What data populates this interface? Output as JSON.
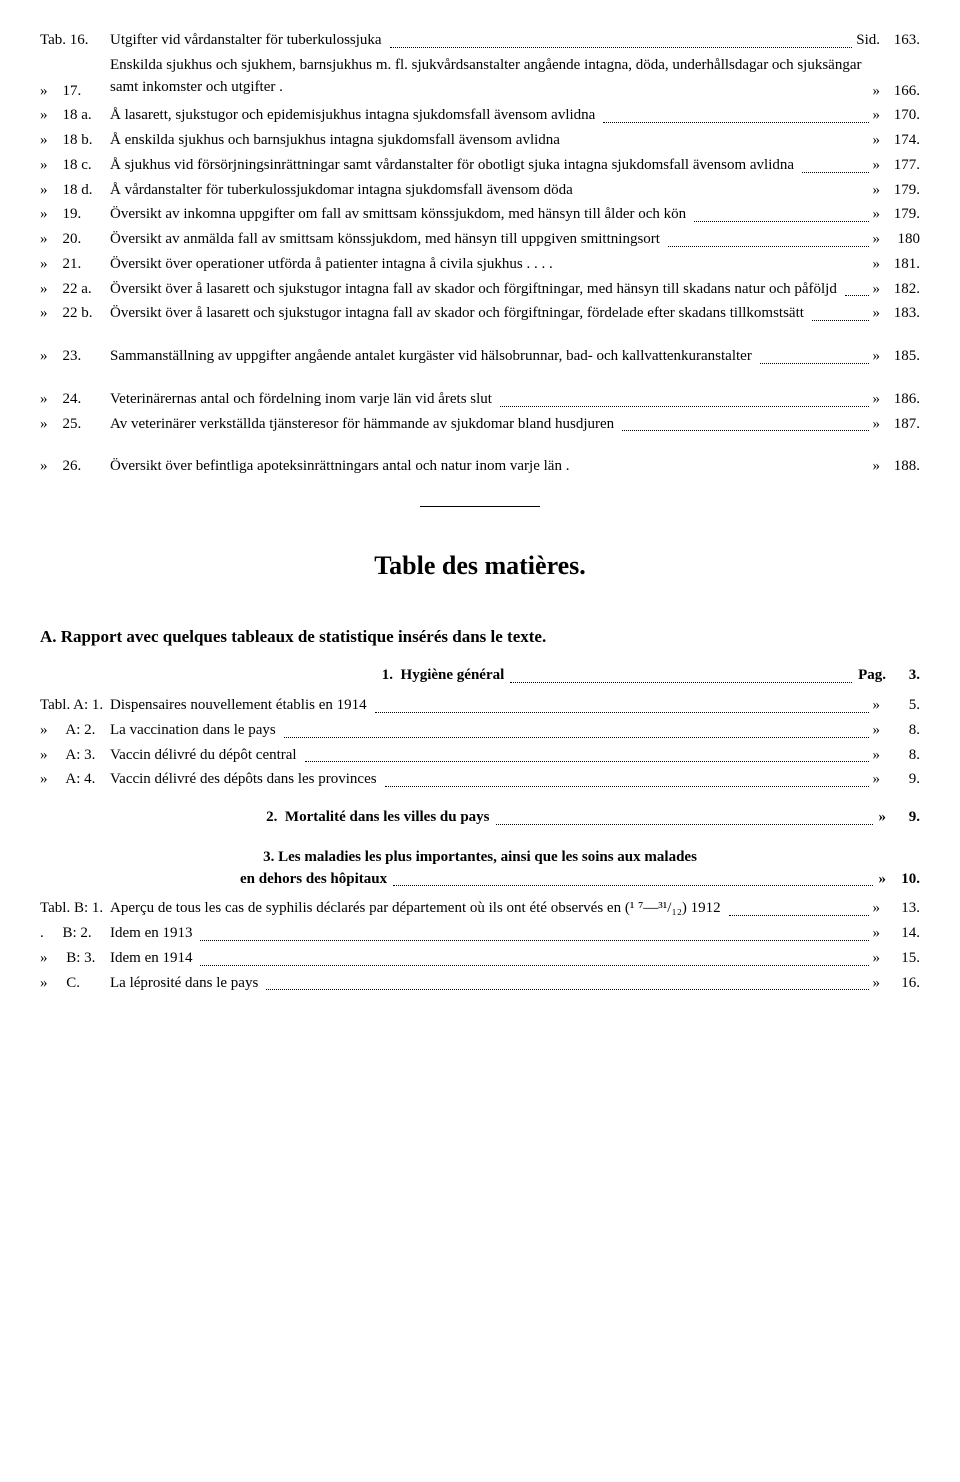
{
  "swedish_entries": [
    {
      "num": "Tab. 16.",
      "desc": "Utgifter vid vårdanstalter för tuberkulossjuka",
      "plabel": "Sid.",
      "page": "163."
    },
    {
      "num": "»    17.",
      "desc": "Enskilda sjukhus och sjukhem, barnsjukhus m. fl. sjukvårdsanstalter angående intagna, döda, underhållsdagar och sjuksängar samt inkomster och utgifter .",
      "plabel": "»",
      "page": "166.",
      "nodots": true,
      "multiline": true
    },
    {
      "num": "»    18 a.",
      "desc": "Å lasarett, sjukstugor och epidemisjukhus intagna sjukdomsfall ävensom avlidna",
      "plabel": "»",
      "page": "170.",
      "multiline": true
    },
    {
      "num": "»    18 b.",
      "desc": "Å enskilda sjukhus och barnsjukhus intagna sjukdomsfall ävensom avlidna",
      "plabel": "»",
      "page": "174.",
      "nodots": true
    },
    {
      "num": "»    18 c.",
      "desc": "Å sjukhus vid försörjningsinrättningar samt vårdanstalter för obotligt sjuka intagna sjukdomsfall ävensom avlidna",
      "plabel": "»",
      "page": "177.",
      "multiline": true
    },
    {
      "num": "»    18 d.",
      "desc": "Å vårdanstalter för tuberkulossjukdomar intagna sjukdomsfall ävensom döda",
      "plabel": "»",
      "page": "179.",
      "nodots": true
    },
    {
      "num": "»    19.",
      "desc": "Översikt av inkomna uppgifter om fall av smittsam könssjukdom, med hänsyn till ålder och kön",
      "plabel": "»",
      "page": "179.",
      "multiline": true
    },
    {
      "num": "»    20.",
      "desc": "Översikt av anmälda fall av smittsam könssjukdom, med hänsyn till uppgiven smittningsort",
      "plabel": "»",
      "page": "180",
      "multiline": true
    },
    {
      "num": "»    21.",
      "desc": "Översikt över operationer utförda å patienter intagna å civila sjukhus . . . .",
      "plabel": "»",
      "page": "181.",
      "nodots": true
    },
    {
      "num": "»    22 a.",
      "desc": "Översikt över å lasarett och sjukstugor intagna fall av skador och förgiftningar, med hänsyn till skadans natur och påföljd",
      "plabel": "»",
      "page": "182.",
      "multiline": true
    },
    {
      "num": "»    22 b.",
      "desc": "Översikt över å lasarett och sjukstugor intagna fall av skador och förgiftningar, fördelade efter skadans tillkomstsätt",
      "plabel": "»",
      "page": "183.",
      "multiline": true
    }
  ],
  "swedish_entries_2": [
    {
      "num": "»    23.",
      "desc": "Sammanställning av uppgifter angående antalet kurgäster vid hälsobrunnar, bad- och kallvattenkuranstalter",
      "plabel": "»",
      "page": "185.",
      "multiline": true
    }
  ],
  "swedish_entries_3": [
    {
      "num": "»    24.",
      "desc": "Veterinärernas antal och fördelning inom varje län vid årets slut",
      "plabel": "»",
      "page": "186."
    },
    {
      "num": "»    25.",
      "desc": "Av veterinärer verkställda tjänsteresor för hämmande av sjukdomar bland husdjuren",
      "plabel": "»",
      "page": "187.",
      "multiline": true
    }
  ],
  "swedish_entries_4": [
    {
      "num": "»    26.",
      "desc": "Översikt över befintliga apoteksinrättningars antal och natur inom varje län .",
      "plabel": "»",
      "page": "188.",
      "nodots": true
    }
  ],
  "main_heading": "Table des matières.",
  "section_a": "A.   Rapport avec quelques tableaux de statistique insérés dans le texte.",
  "sub1": {
    "num": "1.",
    "text": "Hygiène général",
    "plabel": "Pag.",
    "page": "3."
  },
  "french_entries_1": [
    {
      "num": "Tabl. A: 1.",
      "desc": "Dispensaires nouvellement établis en 1914",
      "plabel": "»",
      "page": "5."
    },
    {
      "num": "»     A: 2.",
      "desc": "La vaccination dans le pays",
      "plabel": "»",
      "page": "8."
    },
    {
      "num": "»     A: 3.",
      "desc": "Vaccin délivré du dépôt central",
      "plabel": "»",
      "page": "8."
    },
    {
      "num": "»     A: 4.",
      "desc": "Vaccin délivré des dépôts dans les provinces",
      "plabel": "»",
      "page": "9."
    }
  ],
  "sub2": {
    "num": "2.",
    "text": "Mortalité dans les villes du pays",
    "plabel": "»",
    "page": "9."
  },
  "sub3_l1": "3.   Les maladies les plus importantes, ainsi que les soins aux malades",
  "sub3_l2": "en dehors des hôpitaux",
  "sub3_plabel": "»",
  "sub3_page": "10.",
  "french_entries_2": [
    {
      "num": "Tabl. B: 1.",
      "desc": "Aperçu de tous les cas de syphilis déclarés par département où ils ont été observés en (¹ ⁷—³¹/₁₂) 1912",
      "plabel": "»",
      "page": "13.",
      "multiline": true
    },
    {
      "num": ".     B: 2.",
      "desc": "Idem en 1913",
      "plabel": "»",
      "page": "14."
    },
    {
      "num": "»     B: 3.",
      "desc": "Idem en 1914",
      "plabel": "»",
      "page": "15."
    },
    {
      "num": "»     C.",
      "desc": "La léprosité dans le pays",
      "plabel": "»",
      "page": "16."
    }
  ]
}
